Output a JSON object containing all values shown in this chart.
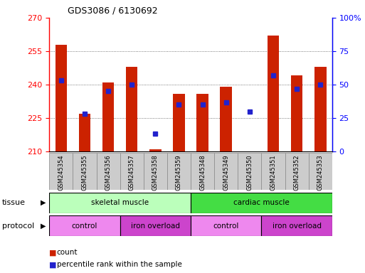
{
  "title": "GDS3086 / 6130692",
  "samples": [
    "GSM245354",
    "GSM245355",
    "GSM245356",
    "GSM245357",
    "GSM245358",
    "GSM245359",
    "GSM245348",
    "GSM245349",
    "GSM245350",
    "GSM245351",
    "GSM245352",
    "GSM245353"
  ],
  "bar_bottom": 210,
  "bar_tops": [
    258,
    227,
    241,
    248,
    211,
    236,
    236,
    239,
    210,
    262,
    244,
    248
  ],
  "blue_y": [
    242,
    227,
    237,
    240,
    218,
    231,
    231,
    232,
    228,
    244,
    238,
    240
  ],
  "ylim_left": [
    210,
    270
  ],
  "ylim_right": [
    0,
    100
  ],
  "yticks_left": [
    210,
    225,
    240,
    255,
    270
  ],
  "yticks_right": [
    0,
    25,
    50,
    75,
    100
  ],
  "bar_color": "#cc2200",
  "blue_color": "#2222cc",
  "skeletal_color": "#bbffbb",
  "cardiac_color": "#44dd44",
  "control_color": "#ee88ee",
  "iron_color": "#cc44cc",
  "grid_color": "#555555",
  "xtick_bg": "#cccccc",
  "bar_width": 0.5,
  "blue_markersize": 4
}
